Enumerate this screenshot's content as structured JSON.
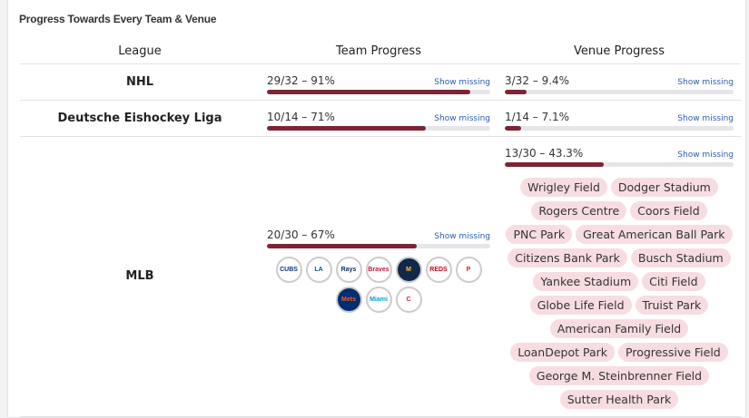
{
  "title": "Progress Towards Every Team & Venue",
  "headers": {
    "league": "League",
    "team": "Team Progress",
    "venue": "Venue Progress"
  },
  "show_missing": "Show missing",
  "accent": "#7d2435",
  "rows": [
    {
      "league": "NHL",
      "team": {
        "text": "29/32 – 91%",
        "pct": 91
      },
      "venue": {
        "text": "3/32 – 9.4%",
        "pct": 9.4
      }
    },
    {
      "league": "Deutsche Eishockey Liga",
      "team": {
        "text": "10/14 – 71%",
        "pct": 71
      },
      "venue": {
        "text": "1/14 – 7.1%",
        "pct": 7.1
      }
    },
    {
      "league": "MLB",
      "team": {
        "text": "20/30 – 67%",
        "pct": 67
      },
      "venue": {
        "text": "13/30 – 43.3%",
        "pct": 43.3
      },
      "logos": [
        {
          "abbr": "CUBS",
          "color": "#0e3386",
          "bg": "#fff"
        },
        {
          "abbr": "LA",
          "color": "#005a9c",
          "bg": "#fff"
        },
        {
          "abbr": "Rays",
          "color": "#092c5c",
          "bg": "#fff"
        },
        {
          "abbr": "Braves",
          "color": "#ce1141",
          "bg": "#fff"
        },
        {
          "abbr": "M",
          "color": "#ffc52f",
          "bg": "#12284b"
        },
        {
          "abbr": "REDS",
          "color": "#c6011f",
          "bg": "#fff"
        },
        {
          "abbr": "P",
          "color": "#e81828",
          "bg": "#fff"
        },
        {
          "abbr": "Mets",
          "color": "#ff5910",
          "bg": "#002d72"
        },
        {
          "abbr": "Miami",
          "color": "#00a3e0",
          "bg": "#fff"
        },
        {
          "abbr": "C",
          "color": "#e31937",
          "bg": "#fff"
        }
      ],
      "missing_venues": [
        "Wrigley Field",
        "Dodger Stadium",
        "Rogers Centre",
        "Coors Field",
        "PNC Park",
        "Great American Ball Park",
        "Citizens Bank Park",
        "Busch Stadium",
        "Yankee Stadium",
        "Citi Field",
        "Globe Life Field",
        "Truist Park",
        "American Family Field",
        "LoanDepot Park",
        "Progressive Field",
        "George M. Steinbrenner Field",
        "Sutter Health Park"
      ]
    }
  ]
}
